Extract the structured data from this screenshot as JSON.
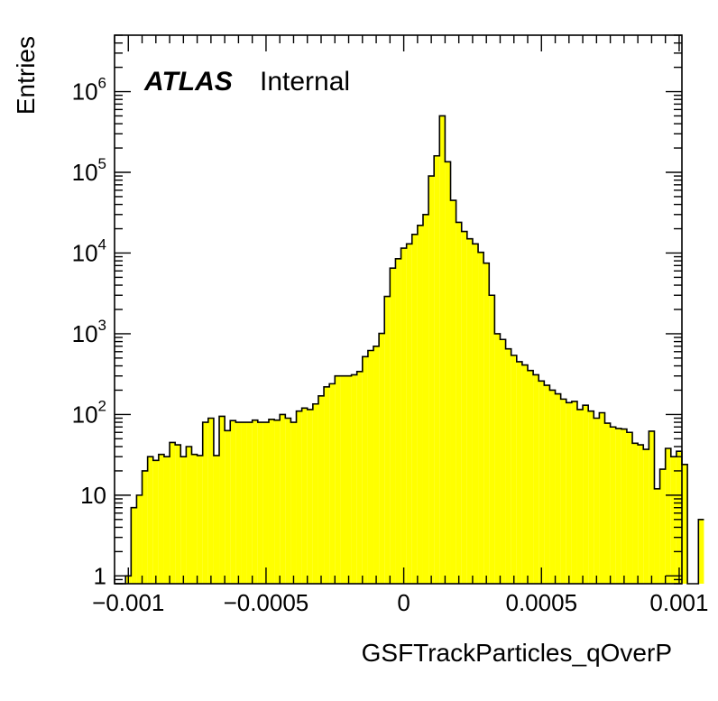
{
  "chart_data": {
    "type": "bar",
    "histogram": true,
    "fill_color": "#ffff00",
    "line_color": "#000000",
    "xlabel": "GSFTrackParticles_qOverP",
    "ylabel": "Entries",
    "log_y": true,
    "xlim": [
      -0.00105,
      0.00101
    ],
    "ylim": [
      0.8,
      5000000
    ],
    "bin_start": -0.00105,
    "bin_width": 2e-05,
    "x_ticks": [
      -0.001,
      -0.0005,
      0,
      0.0005,
      0.001
    ],
    "x_tick_labels": [
      "−0.001",
      "−0.0005",
      "0",
      "0.0005",
      "0.001"
    ],
    "y_tick_labels": [
      {
        "value": 1,
        "base": "1",
        "exp": ""
      },
      {
        "value": 10,
        "base": "10",
        "exp": ""
      },
      {
        "value": 100,
        "base": "10",
        "exp": "2"
      },
      {
        "value": 1000,
        "base": "10",
        "exp": "3"
      },
      {
        "value": 10000,
        "base": "10",
        "exp": "4"
      },
      {
        "value": 100000,
        "base": "10",
        "exp": "5"
      },
      {
        "value": 1000000,
        "base": "10",
        "exp": "6"
      }
    ],
    "values": [
      0,
      0,
      1,
      7,
      10,
      20,
      30,
      27,
      32,
      30,
      45,
      42,
      30,
      40,
      32,
      31,
      80,
      90,
      31,
      95,
      63,
      84,
      80,
      80,
      80,
      85,
      80,
      80,
      87,
      85,
      100,
      90,
      80,
      110,
      120,
      115,
      135,
      170,
      220,
      240,
      300,
      300,
      300,
      310,
      340,
      520,
      620,
      700,
      1010,
      2900,
      6500,
      8500,
      11500,
      13000,
      17000,
      22000,
      30000,
      90000,
      160000,
      500000,
      135000,
      45000,
      24000,
      18500,
      15000,
      13000,
      10200,
      7500,
      3000,
      1000,
      850,
      650,
      540,
      450,
      410,
      350,
      310,
      260,
      230,
      200,
      180,
      155,
      140,
      145,
      115,
      130,
      110,
      90,
      105,
      78,
      70,
      67,
      66,
      60,
      44,
      42,
      37,
      62,
      12,
      21,
      38,
      30,
      35,
      24,
      0,
      0,
      5
    ]
  },
  "annotation": {
    "experiment": "ATLAS",
    "status": "Internal"
  }
}
